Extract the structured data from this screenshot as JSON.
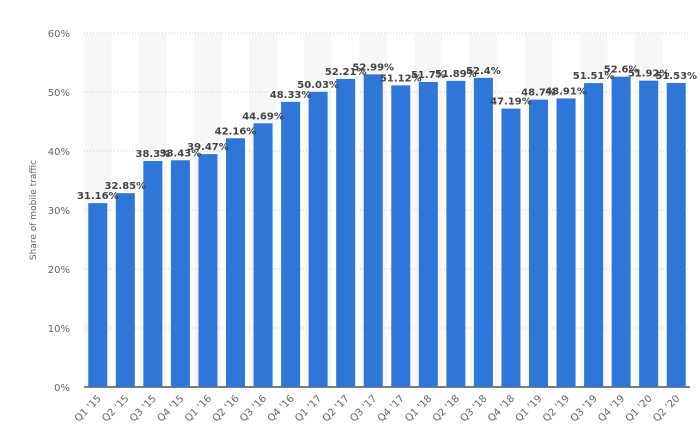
{
  "chart_data": {
    "type": "bar",
    "title": "",
    "xlabel": "",
    "ylabel": "Share of mobile traffic",
    "ylim": [
      0,
      60
    ],
    "yticks": [
      "0%",
      "10%",
      "20%",
      "30%",
      "40%",
      "50%",
      "60%"
    ],
    "grid": true,
    "bar_color": "#2f76d9",
    "categories": [
      "Q1 '15",
      "Q2 '15",
      "Q3 '15",
      "Q4 '15",
      "Q1 '16",
      "Q2 '16",
      "Q3 '16",
      "Q4 '16",
      "Q1 '17",
      "Q2 '17",
      "Q3 '17",
      "Q4 '17",
      "Q1 '18",
      "Q2 '18",
      "Q3 '18",
      "Q4 '18",
      "Q1 '19",
      "Q2 '19",
      "Q3 '19",
      "Q4 '19",
      "Q1 '20",
      "Q2 '20"
    ],
    "values": [
      31.16,
      32.85,
      38.3,
      38.43,
      39.47,
      42.16,
      44.69,
      48.33,
      50.03,
      52.21,
      52.99,
      51.12,
      51.7,
      51.89,
      52.4,
      47.19,
      48.7,
      48.91,
      51.51,
      52.6,
      51.92,
      51.53
    ],
    "data_labels": [
      "31.16%",
      "32.85%",
      "38.3%",
      "38.43%",
      "39.47%",
      "42.16%",
      "44.69%",
      "48.33%",
      "50.03%",
      "52.21%",
      "52.99%",
      "51.12%",
      "51.7%",
      "51.89%",
      "52.4%",
      "47.19%",
      "48.7%",
      "48.91%",
      "51.51%",
      "52.6%",
      "51.92%",
      "51.53%"
    ]
  }
}
